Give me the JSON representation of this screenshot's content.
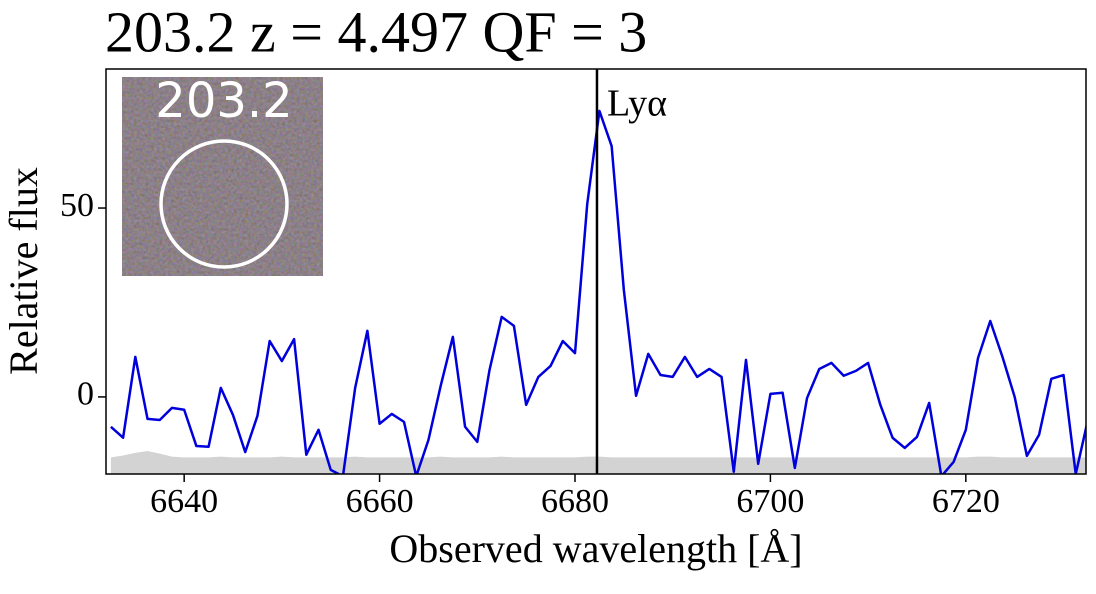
{
  "chart_data": {
    "type": "line",
    "title": "203.2 z = 4.497 QF = 3",
    "x_label": "Observed wavelength [Å]",
    "y_label": "Relative flux",
    "inset_label": "203.2",
    "x": [
      6632.5,
      6633.75,
      6635,
      6636.25,
      6637.5,
      6638.75,
      6640,
      6641.25,
      6642.5,
      6643.75,
      6645,
      6646.25,
      6647.5,
      6648.75,
      6650,
      6651.25,
      6652.5,
      6653.75,
      6655,
      6656.25,
      6657.5,
      6658.75,
      6660,
      6661.25,
      6662.5,
      6663.75,
      6665,
      6666.25,
      6667.5,
      6668.75,
      6670,
      6671.25,
      6672.5,
      6673.75,
      6675,
      6676.25,
      6677.5,
      6678.75,
      6680,
      6681.25,
      6682.5,
      6683.75,
      6685,
      6686.25,
      6687.5,
      6688.75,
      6690,
      6691.25,
      6692.5,
      6693.75,
      6695,
      6696.25,
      6697.5,
      6698.75,
      6700,
      6701.25,
      6702.5,
      6703.75,
      6705,
      6706.25,
      6707.5,
      6708.75,
      6710,
      6711.25,
      6712.5,
      6713.75,
      6715,
      6716.25,
      6717.5,
      6718.75,
      6720,
      6721.25,
      6722.5,
      6723.75,
      6725,
      6726.25,
      6727.5,
      6728.75,
      6730,
      6731.25,
      6732.5
    ],
    "series": [
      {
        "color": "#0000dd",
        "values": [
          -7.9,
          -10.8,
          10.6,
          -5.8,
          -6.1,
          -2.9,
          -3.4,
          -13,
          -13.2,
          2.4,
          -4.8,
          -14.6,
          -5,
          14.8,
          9.5,
          15.3,
          -15.3,
          -8.7,
          -19.3,
          -21,
          2.4,
          17.5,
          -7.1,
          -4.5,
          -6.6,
          -21,
          -11.4,
          2.9,
          15.9,
          -7.9,
          -11.9,
          7.1,
          21.2,
          18.8,
          -2.1,
          5.3,
          8.2,
          14.8,
          11.6,
          51,
          75.7,
          66.4,
          28.3,
          0.3,
          11.4,
          5.8,
          5.3,
          10.6,
          5.3,
          7.4,
          5.3,
          -19.8,
          9.8,
          -17.7,
          0.8,
          1.1,
          -18.8,
          -0.3,
          7.4,
          9,
          5.6,
          6.9,
          9,
          -2.1,
          -10.8,
          -13.5,
          -10.6,
          -1.6,
          -21,
          -17.2,
          -8.7,
          10.3,
          20.1,
          10.6,
          0,
          -15.6,
          -10,
          4.8,
          5.8,
          -20.4,
          -6
        ]
      },
      {
        "color": "#d3d3d3",
        "fill": true,
        "values": [
          -16,
          -15.5,
          -14.8,
          -14.3,
          -15,
          -15.8,
          -16,
          -16,
          -16,
          -15.8,
          -16,
          -16,
          -16,
          -16,
          -15.8,
          -16,
          -16,
          -16,
          -16,
          -16,
          -15.8,
          -16,
          -16,
          -16,
          -16,
          -16,
          -16,
          -15.8,
          -16,
          -16,
          -16,
          -16,
          -15.8,
          -16,
          -16,
          -16,
          -16,
          -16,
          -16,
          -15.8,
          -15.8,
          -16,
          -16,
          -16,
          -16,
          -16,
          -16,
          -16,
          -16,
          -16,
          -16,
          -16,
          -16,
          -16,
          -16,
          -16,
          -16,
          -16,
          -16,
          -16,
          -16,
          -16,
          -16,
          -16,
          -16,
          -16,
          -16,
          -16,
          -16,
          -16,
          -16,
          -15.8,
          -15.8,
          -16,
          -16,
          -16,
          -16,
          -16,
          -16,
          -16,
          -16
        ]
      }
    ],
    "annotations": [
      {
        "text": "Lyα",
        "x": 6682.25
      }
    ],
    "xlim": [
      6632,
      6732.3
    ],
    "ylim": [
      -20.4,
      86.8
    ],
    "xticks": [
      6640,
      6660,
      6680,
      6700,
      6720
    ],
    "yticks": [
      0,
      50
    ]
  }
}
